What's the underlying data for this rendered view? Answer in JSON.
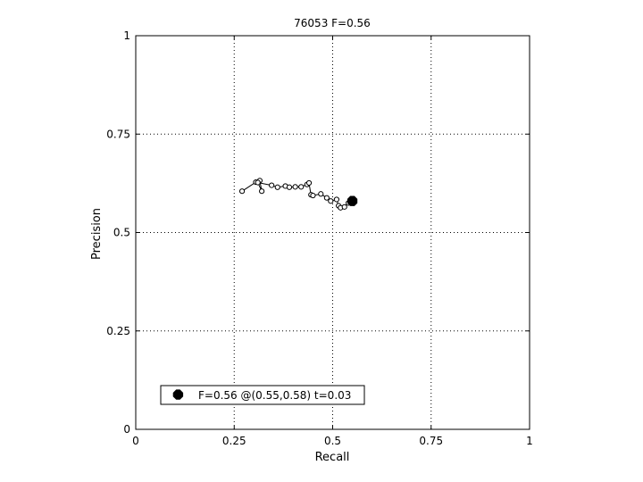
{
  "chart_data": {
    "type": "line",
    "title": "76053 F=0.56",
    "xlabel": "Recall",
    "ylabel": "Precision",
    "xlim": [
      0,
      1
    ],
    "ylim": [
      0,
      1
    ],
    "grid": true,
    "xticks": [
      {
        "value": 0,
        "label": "0"
      },
      {
        "value": 0.25,
        "label": "0.25"
      },
      {
        "value": 0.5,
        "label": "0.5"
      },
      {
        "value": 0.75,
        "label": "0.75"
      },
      {
        "value": 1,
        "label": "1"
      }
    ],
    "yticks": [
      {
        "value": 0,
        "label": "0"
      },
      {
        "value": 0.25,
        "label": "0.25"
      },
      {
        "value": 0.5,
        "label": "0.5"
      },
      {
        "value": 0.75,
        "label": "0.75"
      },
      {
        "value": 1,
        "label": "1"
      }
    ],
    "series": [
      {
        "marker": "open-circle",
        "color": "#000000",
        "x": [
          0.27,
          0.305,
          0.315,
          0.32,
          0.31,
          0.345,
          0.36,
          0.38,
          0.39,
          0.405,
          0.42,
          0.435,
          0.44,
          0.445,
          0.45,
          0.47,
          0.485,
          0.495,
          0.51,
          0.515,
          0.52,
          0.53,
          0.54
        ],
        "y": [
          0.605,
          0.628,
          0.632,
          0.605,
          0.627,
          0.62,
          0.615,
          0.618,
          0.615,
          0.616,
          0.616,
          0.622,
          0.626,
          0.596,
          0.594,
          0.598,
          0.588,
          0.58,
          0.584,
          0.568,
          0.563,
          0.565,
          0.575
        ]
      }
    ],
    "best_point": {
      "x": 0.55,
      "y": 0.58,
      "marker": "filled-octagon"
    },
    "legend": {
      "label": "F=0.56 @(0.55,0.58) t=0.03",
      "placement": "bottom-left"
    }
  }
}
